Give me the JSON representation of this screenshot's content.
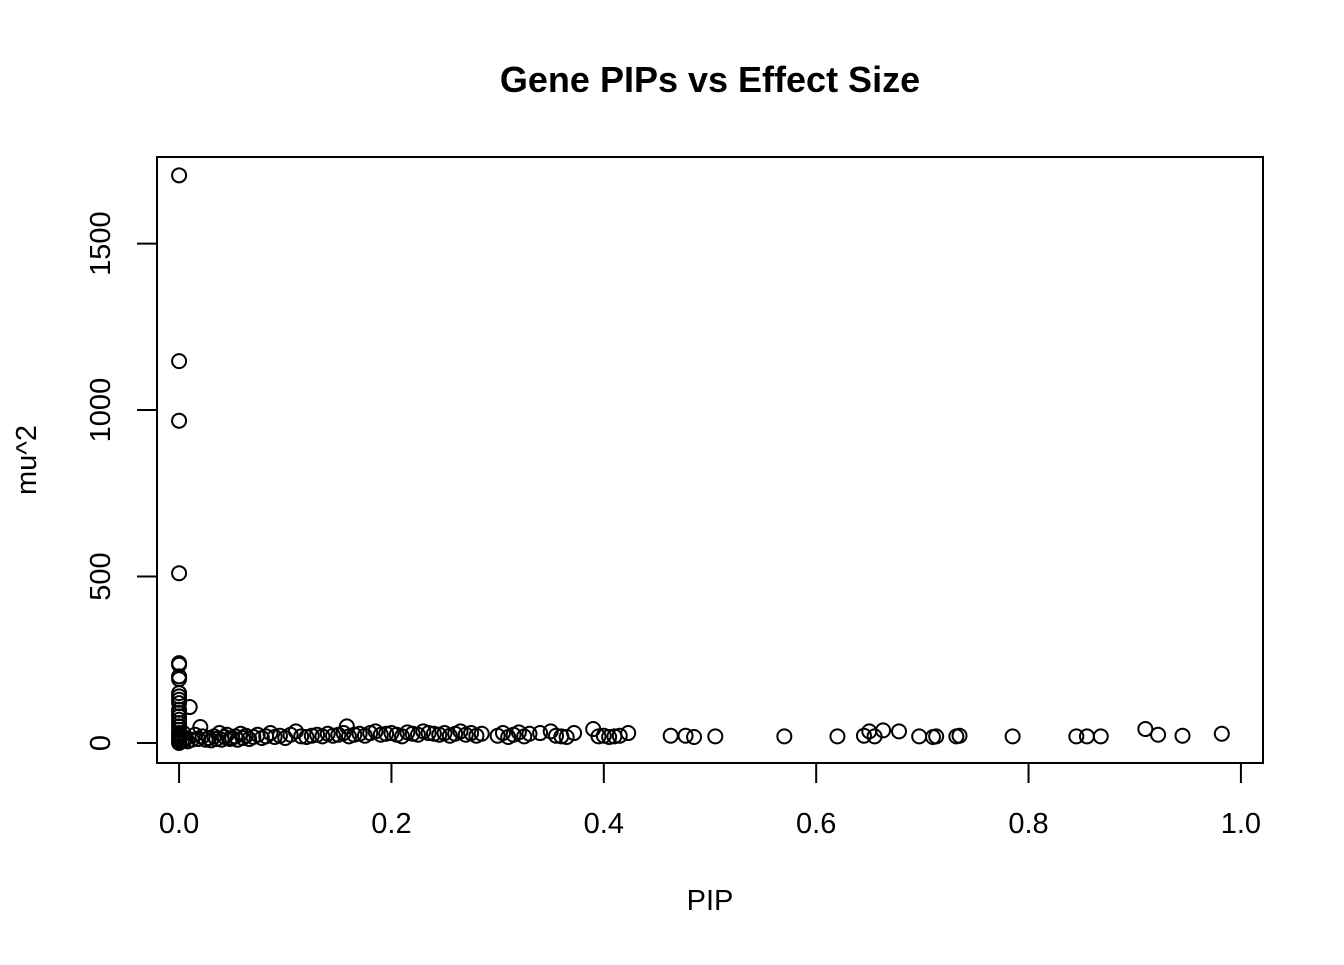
{
  "chart_data": {
    "type": "scatter",
    "title": "Gene PIPs vs Effect Size",
    "xlabel": "PIP",
    "ylabel": "mu^2",
    "xlim": [
      -0.0208,
      1.0208
    ],
    "ylim": [
      -60,
      1760
    ],
    "xticks": [
      0,
      0.2,
      0.4,
      0.6,
      0.8,
      1.0
    ],
    "xtick_labels": [
      "0.0",
      "0.2",
      "0.4",
      "0.6",
      "0.8",
      "1.0"
    ],
    "yticks": [
      0,
      500,
      1000,
      1500
    ],
    "ytick_labels": [
      "0",
      "500",
      "1000",
      "1500"
    ],
    "grid": false,
    "legend": "none",
    "series": [
      {
        "x": [
          0.0,
          0.0,
          0.0,
          0.0,
          0.0,
          0.0,
          0.0,
          0.0,
          0.0,
          0.0,
          0.0,
          0.0,
          0.0,
          0.0,
          0.0,
          0.0,
          0.0,
          0.0,
          0.0,
          0.0,
          0.0,
          0.0,
          0.0,
          0.0,
          0.0,
          0.0,
          0.002,
          0.003,
          0.004,
          0.005,
          0.006,
          0.008,
          0.01,
          0.012,
          0.015,
          0.018,
          0.02,
          0.022,
          0.025,
          0.028,
          0.03,
          0.033,
          0.035,
          0.038,
          0.04,
          0.043,
          0.045,
          0.048,
          0.05,
          0.053,
          0.055,
          0.058,
          0.06,
          0.063,
          0.066,
          0.07,
          0.074,
          0.078,
          0.082,
          0.086,
          0.09,
          0.095,
          0.1,
          0.105,
          0.11,
          0.115,
          0.12,
          0.125,
          0.13,
          0.135,
          0.14,
          0.145,
          0.15,
          0.155,
          0.158,
          0.16,
          0.165,
          0.17,
          0.175,
          0.18,
          0.185,
          0.19,
          0.195,
          0.2,
          0.205,
          0.21,
          0.215,
          0.22,
          0.225,
          0.23,
          0.235,
          0.24,
          0.245,
          0.25,
          0.255,
          0.26,
          0.265,
          0.27,
          0.275,
          0.28,
          0.285,
          0.3,
          0.305,
          0.31,
          0.315,
          0.32,
          0.325,
          0.33,
          0.34,
          0.35,
          0.355,
          0.36,
          0.365,
          0.372,
          0.39,
          0.395,
          0.4,
          0.405,
          0.41,
          0.415,
          0.423,
          0.463,
          0.477,
          0.485,
          0.505,
          0.57,
          0.62,
          0.645,
          0.65,
          0.655,
          0.663,
          0.678,
          0.697,
          0.71,
          0.713,
          0.732,
          0.735,
          0.785,
          0.845,
          0.855,
          0.868,
          0.91,
          0.922,
          0.945,
          0.982
        ],
        "y": [
          1705,
          1147,
          968,
          510,
          240,
          235,
          200,
          192,
          150,
          140,
          130,
          120,
          100,
          90,
          80,
          70,
          60,
          50,
          40,
          30,
          20,
          10,
          5,
          0,
          15,
          25,
          20,
          10,
          30,
          8,
          15,
          5,
          108,
          10,
          25,
          12,
          48,
          20,
          10,
          15,
          8,
          20,
          12,
          30,
          10,
          18,
          25,
          12,
          15,
          20,
          10,
          28,
          15,
          22,
          12,
          18,
          25,
          15,
          20,
          30,
          18,
          22,
          15,
          25,
          35,
          20,
          18,
          22,
          25,
          20,
          28,
          22,
          25,
          30,
          50,
          20,
          25,
          28,
          22,
          30,
          35,
          25,
          28,
          30,
          25,
          20,
          32,
          28,
          25,
          35,
          30,
          28,
          25,
          30,
          22,
          28,
          35,
          25,
          30,
          22,
          28,
          22,
          30,
          18,
          25,
          32,
          20,
          28,
          30,
          35,
          22,
          20,
          18,
          30,
          42,
          20,
          22,
          18,
          20,
          22,
          30,
          22,
          22,
          18,
          20,
          20,
          20,
          22,
          35,
          20,
          38,
          35,
          20,
          18,
          20,
          20,
          22,
          20,
          20,
          20,
          20,
          42,
          25,
          22,
          28
        ]
      }
    ]
  }
}
